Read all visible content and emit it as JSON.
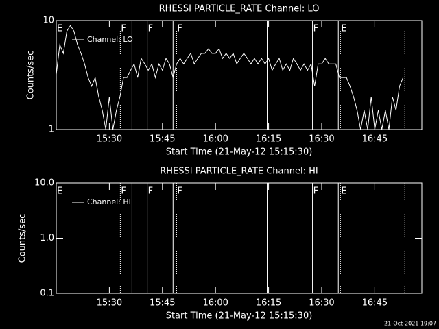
{
  "chart_data": [
    {
      "type": "line",
      "title": "RHESSI PARTICLE_RATE Channel: LO",
      "x_label": "Start Time (21-May-12 15:15:30)",
      "y_label": "Counts/sec",
      "log_y": true,
      "ylim": [
        1,
        10
      ],
      "yticks": [
        1,
        10
      ],
      "xlim": [
        15,
        118.3
      ],
      "xticks": [
        {
          "value": 30,
          "label": "15:30"
        },
        {
          "value": 45,
          "label": "15:45"
        },
        {
          "value": 60,
          "label": "16:00"
        },
        {
          "value": 75,
          "label": "16:15"
        },
        {
          "value": 90,
          "label": "16:30"
        },
        {
          "value": 105,
          "label": "16:45"
        }
      ],
      "x": [
        15,
        16,
        17,
        18,
        19,
        20,
        21,
        22,
        23,
        24,
        25,
        26,
        27,
        28,
        29,
        30,
        31,
        32,
        33,
        34,
        35,
        36,
        37,
        38,
        39,
        40,
        41,
        42,
        43,
        44,
        45,
        46,
        47,
        48,
        49,
        50,
        51,
        52,
        53,
        54,
        55,
        56,
        57,
        58,
        59,
        60,
        61,
        62,
        63,
        64,
        65,
        66,
        67,
        68,
        69,
        70,
        71,
        72,
        73,
        74,
        75,
        76,
        77,
        78,
        79,
        80,
        81,
        82,
        83,
        84,
        85,
        86,
        87,
        88,
        89,
        90,
        91,
        92,
        93,
        94,
        95,
        96,
        97,
        98,
        99,
        100,
        101,
        102,
        103,
        104,
        105,
        106,
        107,
        108,
        109,
        110,
        111,
        112,
        113
      ],
      "series": [
        {
          "name": "Channel: LO",
          "color": "#ffffff",
          "values": [
            3.2,
            6,
            5,
            8,
            9,
            8,
            6,
            5,
            4,
            3,
            2.5,
            3,
            2,
            1.5,
            1,
            2,
            1,
            1.5,
            2,
            3,
            3,
            3.5,
            4,
            3,
            4.5,
            4,
            3.5,
            4,
            3,
            4,
            3.5,
            4.5,
            4,
            3,
            4,
            4.5,
            4,
            4.5,
            5,
            4,
            4.5,
            5,
            5,
            5.5,
            5,
            5,
            5.5,
            4.5,
            5,
            4.5,
            5,
            4,
            4.5,
            5,
            4.5,
            4,
            4.5,
            4,
            4.5,
            4,
            4.5,
            3.5,
            4,
            4.5,
            3.5,
            4,
            3.5,
            4.5,
            4,
            3.5,
            4,
            3.5,
            4,
            2.5,
            4,
            4,
            4.5,
            4,
            4,
            4,
            3,
            3,
            3,
            2.5,
            2,
            1.5,
            1,
            1.5,
            1,
            2,
            1,
            1.5,
            1,
            1.5,
            1,
            2,
            1.5,
            2.5,
            3
          ]
        }
      ],
      "events": [
        {
          "x": 33.1,
          "style": "dotted"
        },
        {
          "x": 36.4,
          "style": "solid"
        },
        {
          "x": 40.7,
          "style": "solid"
        },
        {
          "x": 48.0,
          "style": "solid"
        },
        {
          "x": 49.0,
          "style": "dotted"
        },
        {
          "x": 74.6,
          "style": "solid"
        },
        {
          "x": 87.4,
          "style": "solid"
        },
        {
          "x": 94.7,
          "style": "solid"
        },
        {
          "x": 95.3,
          "style": "dotted"
        },
        {
          "x": 113.5,
          "style": "dotted"
        }
      ],
      "flags": [
        {
          "x": 15,
          "label": "E"
        },
        {
          "x": 33.1,
          "label": "F"
        },
        {
          "x": 40.7,
          "label": "F"
        },
        {
          "x": 49.0,
          "label": "F"
        },
        {
          "x": 87.4,
          "label": "F"
        },
        {
          "x": 95.3,
          "label": "E"
        }
      ]
    },
    {
      "type": "line",
      "title": "RHESSI PARTICLE_RATE Channel: HI",
      "x_label": "Start Time (21-May-12 15:15:30)",
      "y_label": "Counts/sec",
      "log_y": true,
      "ylim": [
        0.1,
        10
      ],
      "yticks": [
        {
          "value": 0.1,
          "label": "0.1"
        },
        {
          "value": 1,
          "label": "1.0"
        },
        {
          "value": 10,
          "label": "10.0"
        }
      ],
      "xlim": [
        15,
        118.3
      ],
      "xticks": [
        {
          "value": 30,
          "label": "15:30"
        },
        {
          "value": 45,
          "label": "15:45"
        },
        {
          "value": 60,
          "label": "16:00"
        },
        {
          "value": 75,
          "label": "16:15"
        },
        {
          "value": 90,
          "label": "16:30"
        },
        {
          "value": 105,
          "label": "16:45"
        }
      ],
      "x": [],
      "series": [
        {
          "name": "Channel: HI",
          "color": "#ffffff",
          "values": []
        }
      ],
      "events": [
        {
          "x": 33.1,
          "style": "dotted"
        },
        {
          "x": 36.4,
          "style": "solid"
        },
        {
          "x": 40.7,
          "style": "solid"
        },
        {
          "x": 48.0,
          "style": "solid"
        },
        {
          "x": 49.0,
          "style": "dotted"
        },
        {
          "x": 74.6,
          "style": "solid"
        },
        {
          "x": 87.4,
          "style": "solid"
        },
        {
          "x": 94.7,
          "style": "solid"
        },
        {
          "x": 95.3,
          "style": "dotted"
        },
        {
          "x": 113.5,
          "style": "dotted"
        }
      ],
      "flags": [
        {
          "x": 15,
          "label": "E"
        },
        {
          "x": 33.1,
          "label": "F"
        },
        {
          "x": 40.7,
          "label": "F"
        },
        {
          "x": 49.0,
          "label": "F"
        },
        {
          "x": 87.4,
          "label": "F"
        },
        {
          "x": 95.3,
          "label": "E"
        }
      ]
    }
  ],
  "footer": "21-Oct-2021 19:07"
}
